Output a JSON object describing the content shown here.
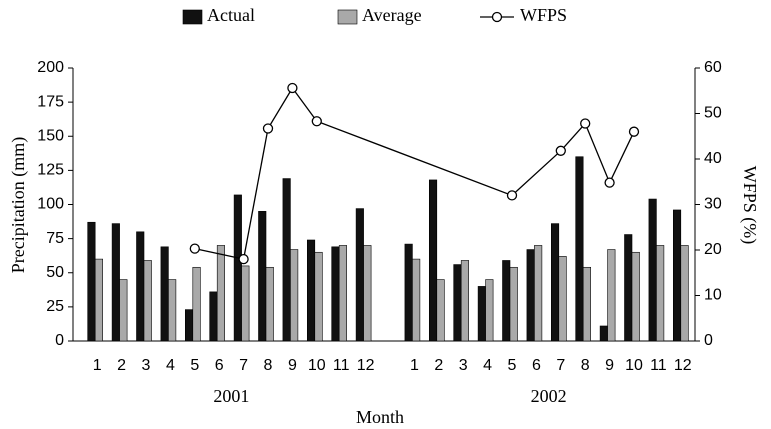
{
  "chart_data": {
    "type": "bar",
    "x_label": "Month",
    "y_label": "Precipitation (mm)",
    "y2_label": "WFPS (%)",
    "categories": [
      "1",
      "2",
      "3",
      "4",
      "5",
      "6",
      "7",
      "8",
      "9",
      "10",
      "11",
      "12",
      null,
      "1",
      "2",
      "3",
      "4",
      "5",
      "6",
      "7",
      "8",
      "9",
      "10",
      "11",
      "12"
    ],
    "groups": [
      "2001",
      "2002"
    ],
    "series": [
      {
        "name": "Actual",
        "color": "#111111",
        "values": [
          87,
          86,
          80,
          69,
          23,
          36,
          107,
          95,
          119,
          74,
          69,
          97,
          null,
          71,
          118,
          56,
          40,
          59,
          67,
          86,
          135,
          11,
          78,
          104,
          96
        ]
      },
      {
        "name": "Average",
        "color": "#a9a9a9",
        "values": [
          60,
          45,
          59,
          45,
          54,
          70,
          55,
          54,
          67,
          65,
          70,
          70,
          null,
          60,
          45,
          59,
          45,
          54,
          70,
          62,
          54,
          67,
          65,
          70,
          70
        ]
      },
      {
        "name": "WFPS",
        "color": "#000000",
        "type": "line",
        "axis": "y2",
        "values": [
          null,
          null,
          null,
          null,
          20.3,
          null,
          18,
          46.7,
          55.6,
          48.3,
          null,
          null,
          null,
          null,
          null,
          null,
          null,
          32,
          null,
          41.8,
          47.8,
          34.8,
          46,
          null,
          null
        ]
      }
    ],
    "ylim": [
      0,
      200
    ],
    "yticks": [
      0,
      25,
      50,
      75,
      100,
      125,
      150,
      175,
      200
    ],
    "y2lim": [
      0,
      60
    ],
    "y2ticks": [
      0,
      10,
      20,
      30,
      40,
      50,
      60
    ],
    "legend": "top"
  }
}
